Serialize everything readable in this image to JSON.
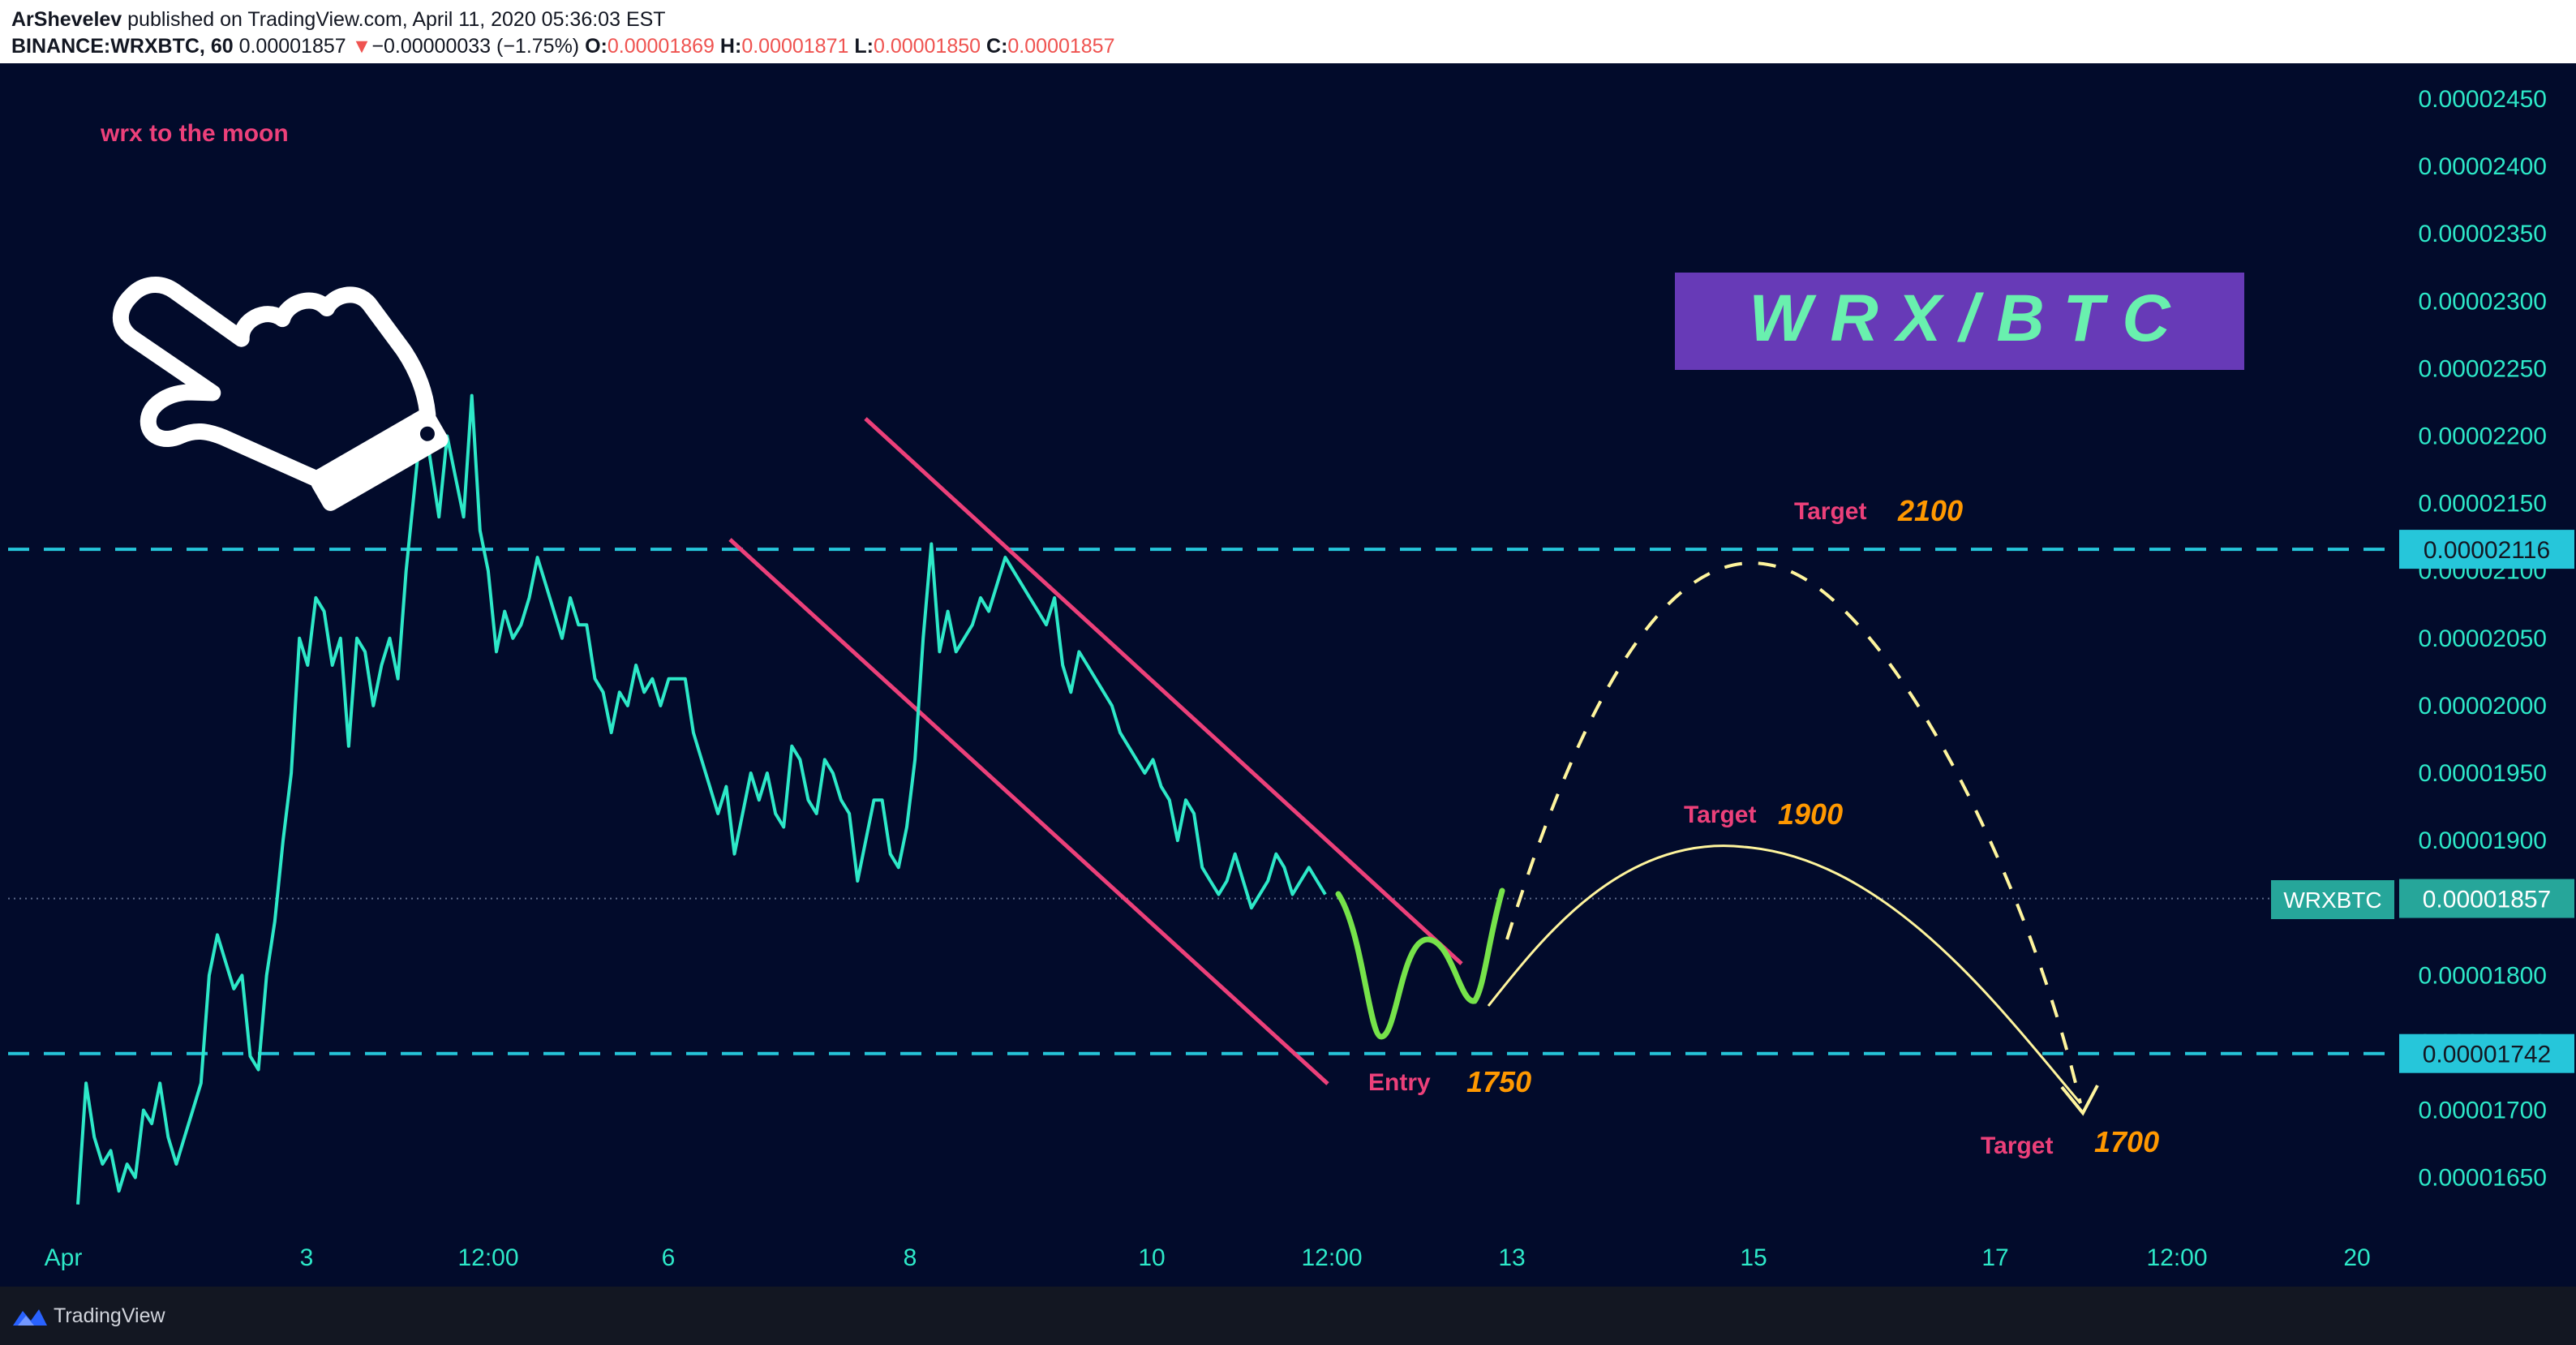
{
  "header": {
    "author": "ArShevelev",
    "published": "published on TradingView.com, April 11, 2020 05:36:03 EST",
    "symbol": "BINANCE:WRXBTC, 60",
    "last": "0.00001857",
    "arrow": "▼",
    "change": "−0.00000033 (−1.75%)",
    "o_label": "O:",
    "o_value": "0.00001869",
    "h_label": "H:",
    "h_value": "0.00001871",
    "l_label": "L:",
    "l_value": "0.00001850",
    "c_label": "C:",
    "c_value": "0.00001857"
  },
  "footer": {
    "brand": "TradingView"
  },
  "colors": {
    "background": "#020b2b",
    "price_line": "#2de8c8",
    "dashed_levels": "#26c6da",
    "channel": "#ec407a",
    "projection_green": "#76e34a",
    "projection_yellow": "#fff59d",
    "label_pink": "#ec407a",
    "label_orange": "#ff9800",
    "title_box": "#673ab7",
    "title_text": "#69f0ae",
    "symbol_tag": "#26a69a"
  },
  "annotations": {
    "note": "wrx to the moon",
    "title_box": "W R X / B T C",
    "target_2100_label": "Target",
    "target_2100_value": "2100",
    "target_1900_label": "Target",
    "target_1900_value": "1900",
    "entry_label": "Entry",
    "entry_value": "1750",
    "target_1700_label": "Target",
    "target_1700_value": "1700",
    "symbol_tag": "WRXBTC"
  },
  "chart_data": {
    "type": "line",
    "title": "",
    "xlabel": "",
    "ylabel": "",
    "ylim": [
      1.62e-05,
      2.47e-05
    ],
    "grid": false,
    "x_ticks": [
      "Apr",
      "3",
      "12:00",
      "6",
      "8",
      "10",
      "12:00",
      "13",
      "15",
      "17",
      "12:00",
      "20"
    ],
    "y_ticks": [
      "0.00002450",
      "0.00002400",
      "0.00002350",
      "0.00002300",
      "0.00002250",
      "0.00002200",
      "0.00002150",
      "0.00002100",
      "0.00002050",
      "0.00002000",
      "0.00001950",
      "0.00001900",
      "0.00001850",
      "0.00001800",
      "0.00001750",
      "0.00001700",
      "0.00001650"
    ],
    "horizontal_levels": [
      {
        "value": 2.116e-05,
        "label": "0.00002116"
      },
      {
        "value": 1.742e-05,
        "label": "0.00001742"
      }
    ],
    "last_price": {
      "value": 1.857e-05,
      "label": "0.00001857"
    },
    "series": [
      {
        "values": [
          1.63e-05,
          1.72e-05,
          1.68e-05,
          1.66e-05,
          1.67e-05,
          1.64e-05,
          1.66e-05,
          1.65e-05,
          1.7e-05,
          1.69e-05,
          1.72e-05,
          1.68e-05,
          1.66e-05,
          1.68e-05,
          1.7e-05,
          1.72e-05,
          1.8e-05,
          1.83e-05,
          1.81e-05,
          1.79e-05,
          1.8e-05,
          1.74e-05,
          1.73e-05,
          1.8e-05,
          1.84e-05,
          1.9e-05,
          1.95e-05,
          2.05e-05,
          2.03e-05,
          2.08e-05,
          2.07e-05,
          2.03e-05,
          2.05e-05,
          1.97e-05,
          2.05e-05,
          2.04e-05,
          2e-05,
          2.03e-05,
          2.05e-05,
          2.02e-05,
          2.1e-05,
          2.16e-05,
          2.22e-05,
          2.18e-05,
          2.14e-05,
          2.2e-05,
          2.17e-05,
          2.14e-05,
          2.23e-05,
          2.13e-05,
          2.1e-05,
          2.04e-05,
          2.07e-05,
          2.05e-05,
          2.06e-05,
          2.08e-05,
          2.11e-05,
          2.09e-05,
          2.07e-05,
          2.05e-05,
          2.08e-05,
          2.06e-05,
          2.06e-05,
          2.02e-05,
          2.01e-05,
          1.98e-05,
          2.01e-05,
          2e-05,
          2.03e-05,
          2.01e-05,
          2.02e-05,
          2e-05,
          2.02e-05,
          2.02e-05,
          2.02e-05,
          1.98e-05,
          1.96e-05,
          1.94e-05,
          1.92e-05,
          1.94e-05,
          1.89e-05,
          1.92e-05,
          1.95e-05,
          1.93e-05,
          1.95e-05,
          1.92e-05,
          1.91e-05,
          1.97e-05,
          1.96e-05,
          1.93e-05,
          1.92e-05,
          1.96e-05,
          1.95e-05,
          1.93e-05,
          1.92e-05,
          1.87e-05,
          1.9e-05,
          1.93e-05,
          1.93e-05,
          1.89e-05,
          1.88e-05,
          1.91e-05,
          1.96e-05,
          2.05e-05,
          2.12e-05,
          2.04e-05,
          2.07e-05,
          2.04e-05,
          2.05e-05,
          2.06e-05,
          2.08e-05,
          2.07e-05,
          2.09e-05,
          2.11e-05,
          2.1e-05,
          2.09e-05,
          2.08e-05,
          2.07e-05,
          2.06e-05,
          2.08e-05,
          2.03e-05,
          2.01e-05,
          2.04e-05,
          2.03e-05,
          2.02e-05,
          2.01e-05,
          2e-05,
          1.98e-05,
          1.97e-05,
          1.96e-05,
          1.95e-05,
          1.96e-05,
          1.94e-05,
          1.93e-05,
          1.9e-05,
          1.93e-05,
          1.92e-05,
          1.88e-05,
          1.87e-05,
          1.86e-05,
          1.87e-05,
          1.89e-05,
          1.87e-05,
          1.85e-05,
          1.86e-05,
          1.87e-05,
          1.89e-05,
          1.88e-05,
          1.86e-05,
          1.87e-05,
          1.88e-05,
          1.87e-05,
          1.86e-05
        ]
      }
    ]
  }
}
